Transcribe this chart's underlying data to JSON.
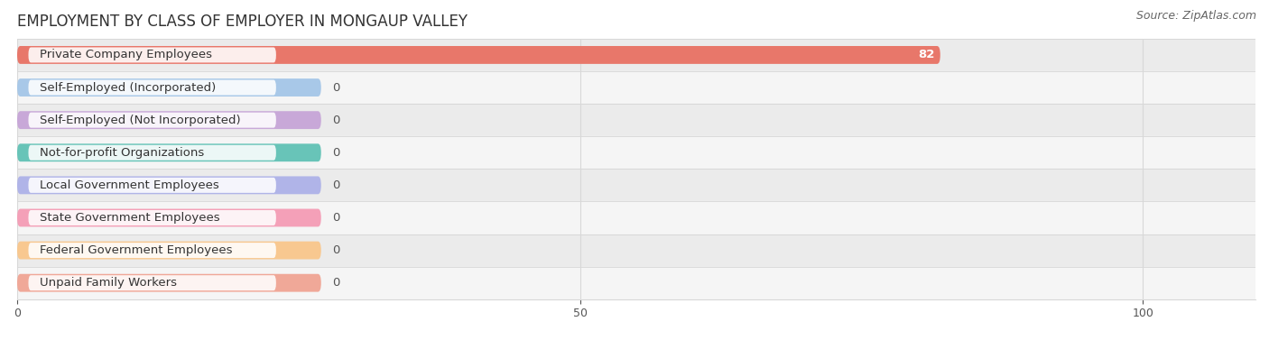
{
  "title": "EMPLOYMENT BY CLASS OF EMPLOYER IN MONGAUP VALLEY",
  "source": "Source: ZipAtlas.com",
  "categories": [
    "Private Company Employees",
    "Self-Employed (Incorporated)",
    "Self-Employed (Not Incorporated)",
    "Not-for-profit Organizations",
    "Local Government Employees",
    "State Government Employees",
    "Federal Government Employees",
    "Unpaid Family Workers"
  ],
  "values": [
    82,
    0,
    0,
    0,
    0,
    0,
    0,
    0
  ],
  "bar_colors": [
    "#e8776a",
    "#a8c8e8",
    "#c8a8d8",
    "#68c4b8",
    "#b0b4e8",
    "#f4a0b8",
    "#f8c890",
    "#f0a898"
  ],
  "row_bg_colors": [
    "#ebebeb",
    "#f5f5f5"
  ],
  "xlim_max": 110,
  "xticks": [
    0,
    50,
    100
  ],
  "title_fontsize": 12,
  "source_fontsize": 9,
  "label_fontsize": 9.5,
  "value_fontsize": 9.5,
  "background_color": "#ffffff",
  "grid_color": "#d8d8d8",
  "row_separator_color": "#d0d0d0"
}
